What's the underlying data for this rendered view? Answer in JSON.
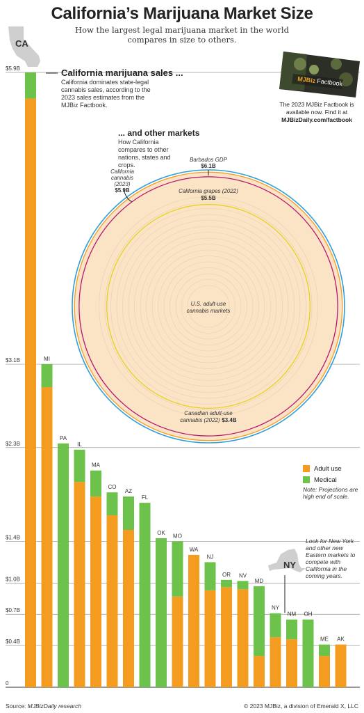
{
  "title": "California’s Marijuana Market Size",
  "subtitle": "How the largest legal marijuana market in the world compares in size to others.",
  "ca_label": "CA",
  "ca_callout": {
    "title": "California marijuana sales ...",
    "text": "California dominates state-legal cannabis sales, according to the 2023 sales estimates from the MJBiz Factbook."
  },
  "other_markets": {
    "title": "... and other markets",
    "text": "How California compares to other nations, states and crops."
  },
  "factbook": {
    "cover_title": "Factbook",
    "cover_brand": "MJBiz",
    "text": "The 2023 MJBiz Factbook is available now. Find it at",
    "url": "MJBizDaily.com/factbook"
  },
  "legend": {
    "adult_use": "Adult use",
    "medical": "Medical",
    "note": "Note: Projections are high end of scale."
  },
  "ny": {
    "label": "NY",
    "note": "Look for New York and other new Eastern markets to compete with California in the coming years."
  },
  "source": {
    "prefix": "Source: ",
    "name": "MJBizDaily research"
  },
  "copyright": "© 2023 MJBiz, a division of Emerald X, LLC",
  "colors": {
    "adult_use": "#f39c1f",
    "medical": "#6cc24a",
    "gridline": "#9a9a9a",
    "circle_fill": "#fbe3c6",
    "barbados": "#2f9fd8",
    "ca_cannabis": "#f39c1f",
    "ca_grapes": "#b5176c",
    "canada": "#e8d21a",
    "text": "#222222"
  },
  "chart_data": [
    {
      "type": "bar",
      "stacked": true,
      "ylim": [
        0,
        5.9
      ],
      "yticks": [
        0,
        0.4,
        0.7,
        1.0,
        1.4,
        2.3,
        3.1,
        5.9
      ],
      "ytick_labels": [
        "0",
        "$0.4B",
        "$0.7B",
        "$1.0B",
        "$1.4B",
        "$2.3B",
        "$3.1B",
        "$5.9B"
      ],
      "categories": [
        "CA",
        "MI",
        "PA",
        "IL",
        "MA",
        "CO",
        "AZ",
        "FL",
        "OK",
        "MO",
        "WA",
        "NJ",
        "OR",
        "NV",
        "MD",
        "NY",
        "NM",
        "OH",
        "ME",
        "AK"
      ],
      "series": [
        {
          "name": "Adult use",
          "values": [
            5.65,
            2.88,
            0,
            1.97,
            1.83,
            1.65,
            1.51,
            0,
            0,
            0.87,
            1.27,
            0.93,
            0.96,
            0.94,
            0.3,
            0.48,
            0.46,
            0,
            0.3,
            0.41
          ]
        },
        {
          "name": "Medical",
          "values": [
            0.25,
            0.22,
            2.34,
            0.31,
            0.25,
            0.22,
            0.32,
            1.77,
            1.43,
            0.53,
            0,
            0.27,
            0.07,
            0.08,
            0.67,
            0.23,
            0.19,
            0.65,
            0.11,
            0
          ]
        }
      ],
      "legend": "right"
    },
    {
      "type": "concentric-circles",
      "unit": "USD billions",
      "items": [
        {
          "name": "Barbados GDP",
          "value": 6.1,
          "label": "$6.1B"
        },
        {
          "name": "California cannabis (2023)",
          "value": 5.9,
          "label": "$5.9B"
        },
        {
          "name": "California grapes (2022)",
          "value": 5.5,
          "label": "$5.5B"
        },
        {
          "name": "Canadian adult-use cannabis (2022)",
          "value": 3.4,
          "label": "$3.4B"
        },
        {
          "name": "U.S. adult-use cannabis markets",
          "value": null,
          "label": ""
        }
      ]
    }
  ]
}
